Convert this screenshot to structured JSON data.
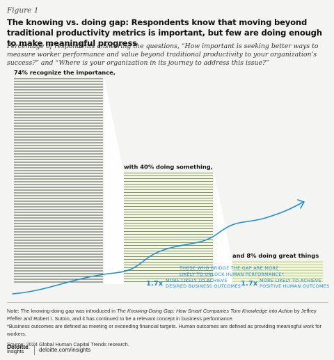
{
  "figure_label": "Figure 1",
  "title": "The knowing vs. doing gap: Respondents know that moving beyond traditional productivity metrics is important, but few are doing enough to make meaningful progress",
  "subtitle": "Percentage of respondents answering the questions, “How important is seeking better ways to measure worker performance and value beyond traditional productivity to your organization’s success?” and “Where is your organization in its journey to address this issue?”",
  "chart_data": {
    "type": "bar",
    "categories": [
      "74% recognize the importance,",
      "with 40% doing something,",
      "and 8% doing great things"
    ],
    "values": [
      74,
      40,
      8
    ],
    "unit": "%",
    "colors": [
      "#4e5a3a",
      "#7e9a3e",
      "#b8d24a"
    ],
    "annotation": {
      "main": "THOSE WHO BRIDGE THE GAP ARE MORE LIKELY TO UNLOCK HUMAN PERFORMANCE*",
      "stat1_value": "1.7x",
      "stat1_text": "MORE LIKELY TO ACHIEVE DESIRED BUSINESS OUTCOMES",
      "stat2_value": "1.7x",
      "stat2_text": "MORE LIKELY TO ACHIEVE POSITIVE HUMAN OUTCOMES",
      "color": "#1e8fd3"
    }
  },
  "notes": {
    "note1_prefix": "Note: The knowing-doing gap was introduced in ",
    "note1_book": "The Knowing-Doing Gap: How Smart Companies Turn Knowledge into Action",
    "note1_suffix": " by Jeffrey Pfeffer and Robert I. Sutton, and it has continued to be a relevant concept in business performance.",
    "note2": "*Business outcomes are defined as meeting or exceeding financial targets. Human outcomes are defined as providing meaningful work for workers.",
    "source": "Source: 2024 Global Human Capital Trends research."
  },
  "footer": {
    "logo_line1": "Deloitte",
    "logo_dot": ".",
    "logo_line2": "Insights",
    "site": "deloitte.com/insights"
  }
}
